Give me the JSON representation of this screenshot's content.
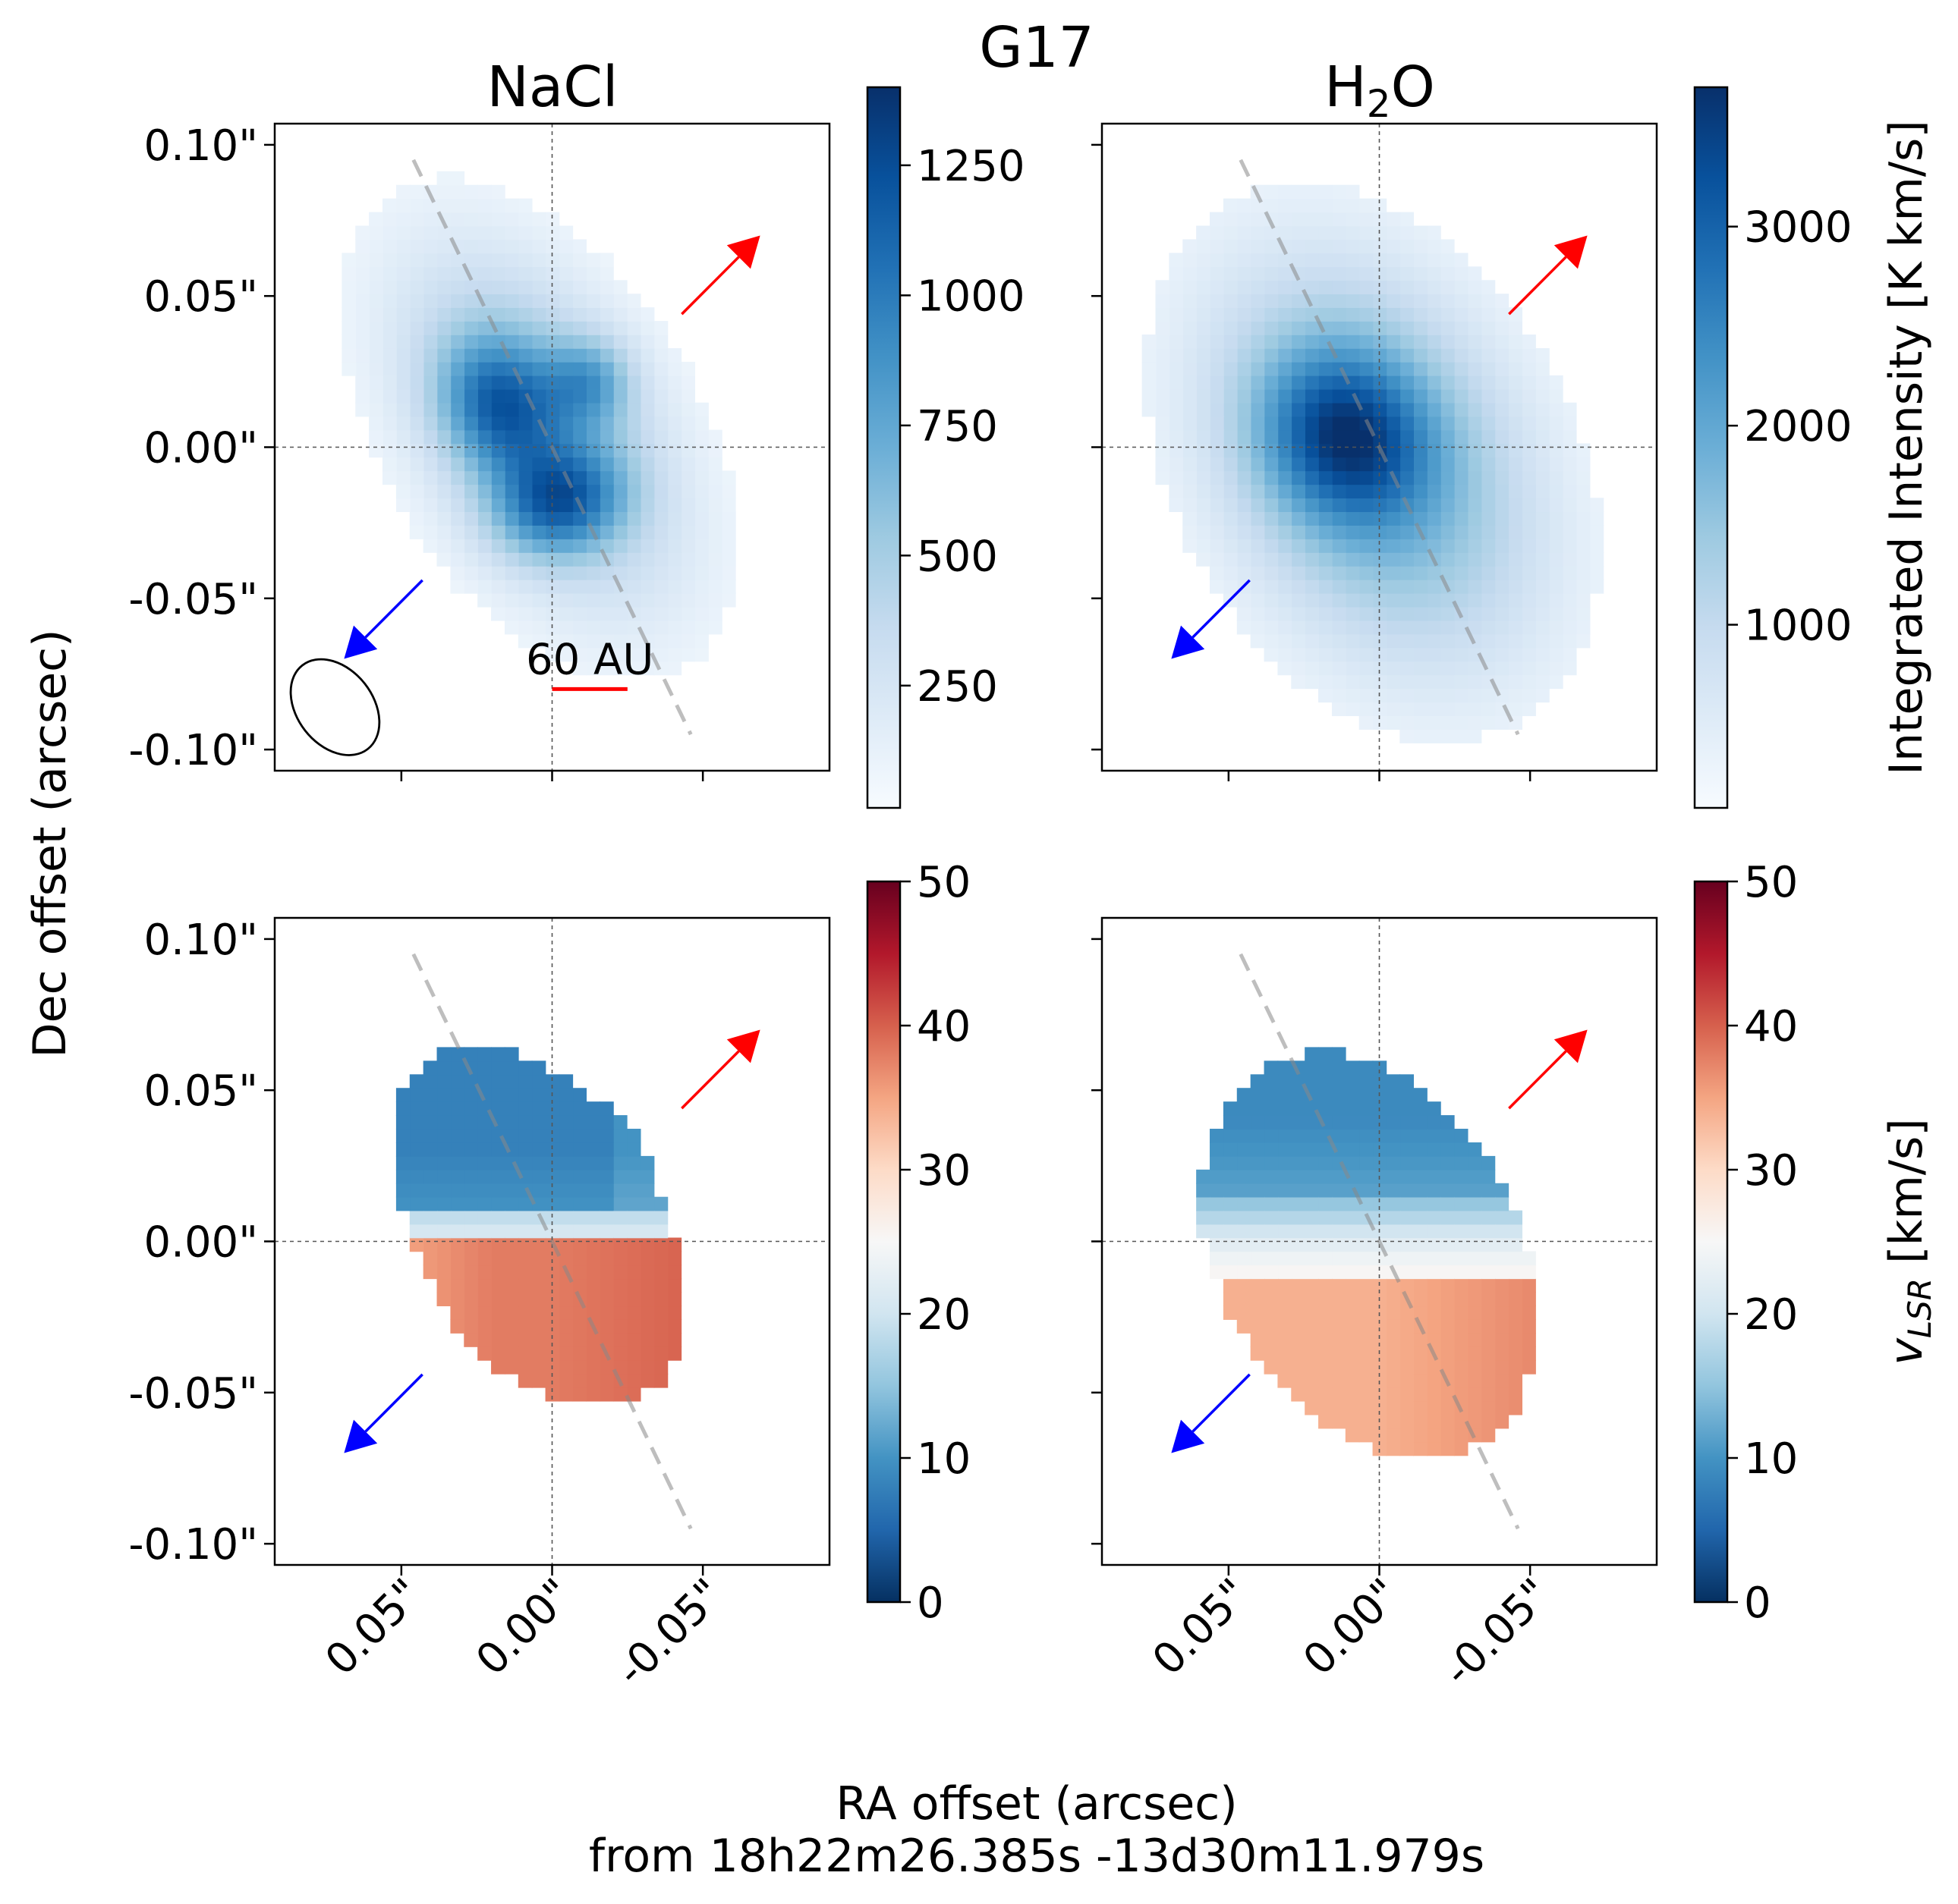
{
  "figure": {
    "title": "G17",
    "xlabel_line1": "RA offset (arcsec)",
    "xlabel_line2": "from 18h22m26.385s -13d30m11.979s",
    "ylabel": "Dec offset (arcsec)"
  },
  "columns": [
    {
      "title": "NaCl"
    },
    {
      "title_main": "H",
      "title_sub": "2",
      "title_tail": "O"
    }
  ],
  "axes": {
    "x_ticks": [
      "0.05\"",
      "0.00\"",
      "-0.05\""
    ],
    "x_tick_values": [
      0.05,
      0.0,
      -0.05
    ],
    "y_ticks": [
      "0.10\"",
      "0.05\"",
      "0.00\"",
      "-0.05\"",
      "-0.10\""
    ],
    "y_tick_values": [
      0.1,
      0.05,
      0.0,
      -0.05,
      -0.1
    ],
    "xlim": [
      0.092,
      -0.092
    ],
    "ylim": [
      -0.107,
      0.107
    ],
    "axis_direction": "RA increases to the left"
  },
  "annotations": {
    "scale_bar_label": "60 AU",
    "scale_bar_color": "#ff0000",
    "redshifted_outflow_arrow_color": "#ff0000",
    "blueshifted_outflow_arrow_color": "#0000ff",
    "beam": "ellipse, lower-left of NaCl intensity panel",
    "disk_axis": "dashed gray line from (0.046, 0.095) to (-0.046, -0.095)"
  },
  "colorbars": {
    "nacl_intensity": {
      "ticks": [
        "250",
        "500",
        "750",
        "1000",
        "1250"
      ],
      "tick_values": [
        250,
        500,
        750,
        1000,
        1250
      ],
      "range": [
        15,
        1400
      ],
      "colormap": "Blues"
    },
    "h2o_intensity": {
      "ticks": [
        "1000",
        "2000",
        "3000"
      ],
      "tick_values": [
        1000,
        2000,
        3000
      ],
      "range": [
        80,
        3700
      ],
      "colormap": "Blues",
      "label": "Integrated Intensity [K km/s]"
    },
    "nacl_velocity": {
      "ticks": [
        "0",
        "10",
        "20",
        "30",
        "40",
        "50"
      ],
      "tick_values": [
        0,
        10,
        20,
        30,
        40,
        50
      ],
      "range": [
        0,
        50
      ],
      "colormap": "RdBu_r"
    },
    "h2o_velocity": {
      "ticks": [
        "0",
        "10",
        "20",
        "30",
        "40",
        "50"
      ],
      "tick_values": [
        0,
        10,
        20,
        30,
        40,
        50
      ],
      "range": [
        0,
        50
      ],
      "colormap": "RdBu_r",
      "label_main": "v",
      "label_sub": "LSR",
      "label_tail": " [km/s]"
    }
  },
  "chart_data": [
    {
      "type": "heatmap",
      "title": "NaCl",
      "quantity": "integrated intensity",
      "peak_value": 1400,
      "zlim": [
        15,
        1400
      ],
      "peaks": [
        {
          "x": 0.018,
          "y": 0.014,
          "value": 1330
        },
        {
          "x": -0.002,
          "y": -0.018,
          "value": 1400
        },
        {
          "x": -0.012,
          "y": 0.022,
          "value": 1140
        }
      ],
      "extent_x": [
        0.052,
        -0.052
      ],
      "extent_y": [
        -0.042,
        0.065
      ],
      "orientation_deg": -33
    },
    {
      "type": "heatmap",
      "title": "H2O",
      "quantity": "integrated intensity",
      "peak_value": 3700,
      "zlim": [
        80,
        3700
      ],
      "peaks": [
        {
          "x": 0.012,
          "y": 0.004,
          "value": 3700
        }
      ],
      "extent_x": [
        0.055,
        -0.052
      ],
      "extent_y": [
        -0.07,
        0.065
      ],
      "orientation_deg": -30
    },
    {
      "type": "heatmap",
      "title": "NaCl",
      "quantity": "vLSR",
      "zlim": [
        0,
        50
      ],
      "typical_values": {
        "north_lobe": 8,
        "transition": 22,
        "south_lobe": 38,
        "south_peak": 40
      }
    },
    {
      "type": "heatmap",
      "title": "H2O",
      "quantity": "vLSR",
      "zlim": [
        0,
        50
      ],
      "typical_values": {
        "north_lobe": 9,
        "transition": 22,
        "south_lobe": 34,
        "south_peak": 37
      }
    }
  ]
}
